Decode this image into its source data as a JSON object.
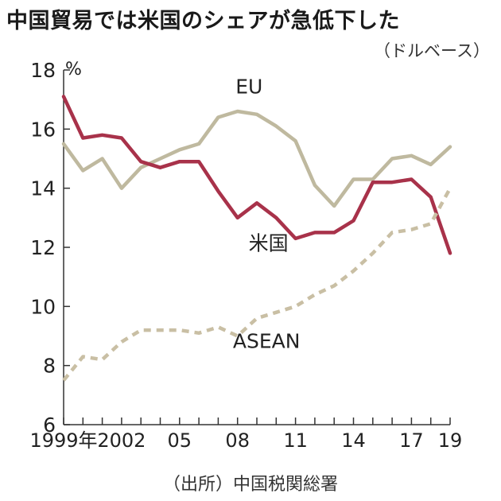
{
  "title": "中国貿易では米国のシェアが急低下した",
  "subtitle": "（ドルベース）",
  "source": "（出所）中国税関総署",
  "colors": {
    "EU": "#bfb99f",
    "米国": "#a8324a",
    "ASEAN": "#c9bfa4",
    "axis": "#333333"
  },
  "chart_data": {
    "type": "line",
    "unit_label": "%",
    "ylim": [
      6,
      18
    ],
    "yticks": [
      "6",
      "8",
      "10",
      "12",
      "14",
      "16",
      "18"
    ],
    "x": [
      1999,
      2000,
      2001,
      2002,
      2003,
      2004,
      2005,
      2006,
      2007,
      2008,
      2009,
      2010,
      2011,
      2012,
      2013,
      2014,
      2015,
      2016,
      2017,
      2018,
      2019
    ],
    "xtick_labels": [
      {
        "x": 1999,
        "label": "1999年"
      },
      {
        "x": 2002,
        "label": "2002"
      },
      {
        "x": 2005,
        "label": "05"
      },
      {
        "x": 2008,
        "label": "08"
      },
      {
        "x": 2011,
        "label": "11"
      },
      {
        "x": 2014,
        "label": "14"
      },
      {
        "x": 2017,
        "label": "17"
      },
      {
        "x": 2019,
        "label": "19"
      }
    ],
    "series": [
      {
        "name": "EU",
        "style": "solid",
        "values": [
          15.5,
          14.6,
          15.0,
          14.0,
          14.7,
          15.0,
          15.3,
          15.5,
          16.4,
          16.6,
          16.5,
          16.1,
          15.6,
          14.1,
          13.4,
          14.3,
          14.3,
          15.0,
          15.1,
          14.8,
          15.4
        ]
      },
      {
        "name": "米国",
        "style": "solid",
        "values": [
          17.1,
          15.7,
          15.8,
          15.7,
          14.9,
          14.7,
          14.9,
          14.9,
          13.9,
          13.0,
          13.5,
          13.0,
          12.3,
          12.5,
          12.5,
          12.9,
          14.2,
          14.2,
          14.3,
          13.7,
          11.8
        ]
      },
      {
        "name": "ASEAN",
        "style": "dashed",
        "values": [
          7.5,
          8.3,
          8.2,
          8.8,
          9.2,
          9.2,
          9.2,
          9.1,
          9.3,
          9.0,
          9.6,
          9.8,
          10.0,
          10.4,
          10.7,
          11.2,
          11.8,
          12.5,
          12.6,
          12.8,
          14.0
        ]
      }
    ]
  }
}
